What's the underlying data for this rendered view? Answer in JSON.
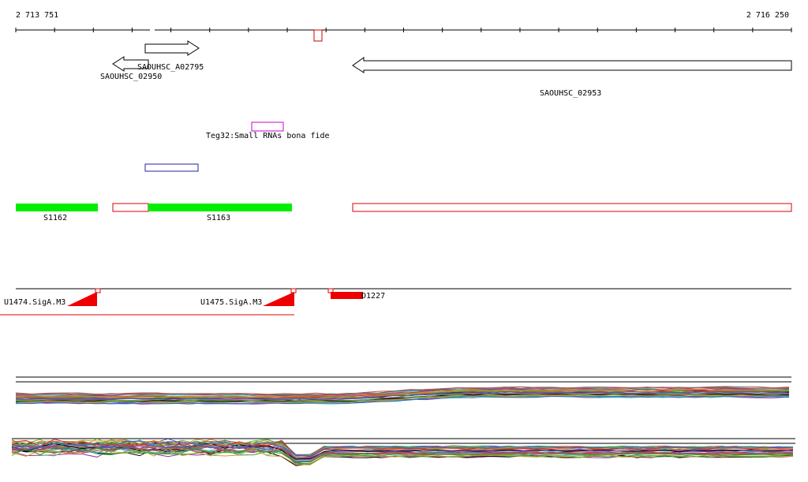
{
  "ruler": {
    "start": "2 713 751",
    "end": "2 716 250"
  },
  "genes": [
    "SAOUHSC_A02795",
    "SAOUHSC_02950",
    "SAOUHSC_02953"
  ],
  "small_rna": "Teg32:Small RNAs bona fide",
  "segments": [
    "S1162",
    "S1163"
  ],
  "promoters": [
    "U1474.SigA.M3",
    "U1475.SigA.M3",
    "D1227"
  ]
}
